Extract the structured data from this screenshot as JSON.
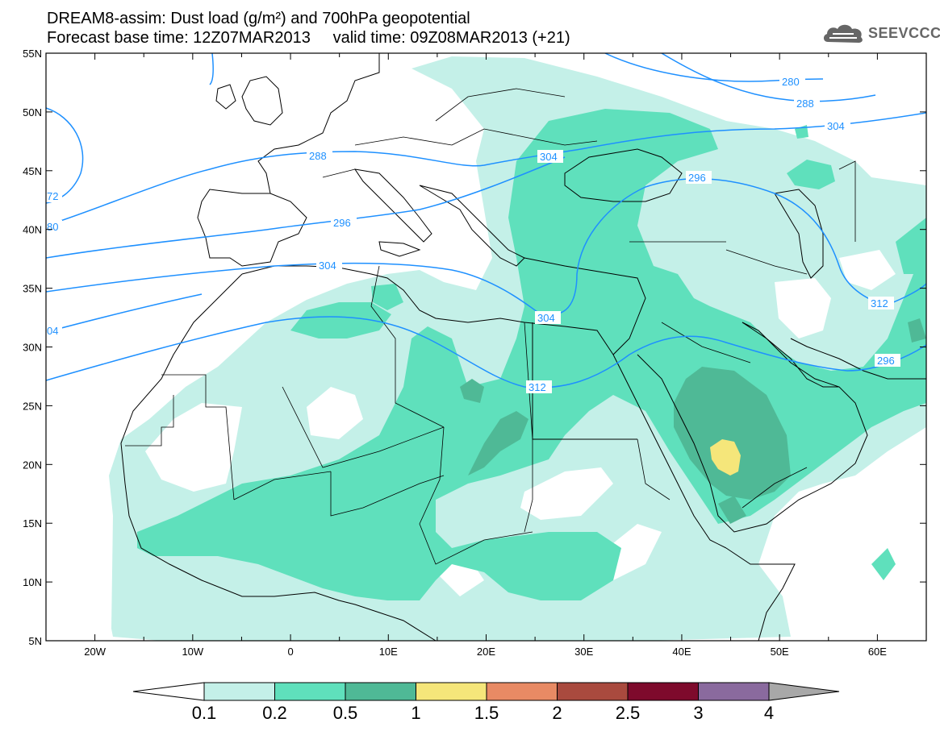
{
  "header": {
    "line1": "DREAM8-assim: Dust load (g/m²) and 700hPa geopotential",
    "line2": "Forecast base time: 12Z07MAR2013     valid time: 09Z08MAR2013 (+21)"
  },
  "logo": {
    "text": "SEEVCCC",
    "icon": "cloud-icon",
    "color": "#666666"
  },
  "axes": {
    "lon_ticks": [
      "20W",
      "10W",
      "0",
      "10E",
      "20E",
      "30E",
      "40E",
      "50E",
      "60E"
    ],
    "lat_ticks": [
      "55N",
      "50N",
      "45N",
      "40N",
      "35N",
      "30N",
      "25N",
      "20N",
      "15N",
      "10N",
      "5N"
    ],
    "lon_range": [
      -25,
      65
    ],
    "lat_range": [
      5,
      55
    ]
  },
  "contours": {
    "color": "#1e90ff",
    "labels": [
      "280",
      "288",
      "296",
      "304",
      "312",
      "72",
      "80",
      "04",
      "288",
      "296",
      "304",
      "296",
      "304",
      "304",
      "312"
    ]
  },
  "colorbar": {
    "labels": [
      "0.1",
      "0.2",
      "0.5",
      "1",
      "1.5",
      "2",
      "2.5",
      "3",
      "4"
    ],
    "colors": [
      "#c4f0e8",
      "#5fe0bc",
      "#4fb996",
      "#f5e67a",
      "#e88a64",
      "#a94a3e",
      "#7e0a2c",
      "#8a6a9e"
    ],
    "under_color": "#ffffff",
    "over_color": "#a8a8a8"
  },
  "dust_colors": {
    "light": "#c4f0e8",
    "medium": "#5fe0bc",
    "dark": "#4fb996",
    "yellow": "#f5e67a"
  }
}
